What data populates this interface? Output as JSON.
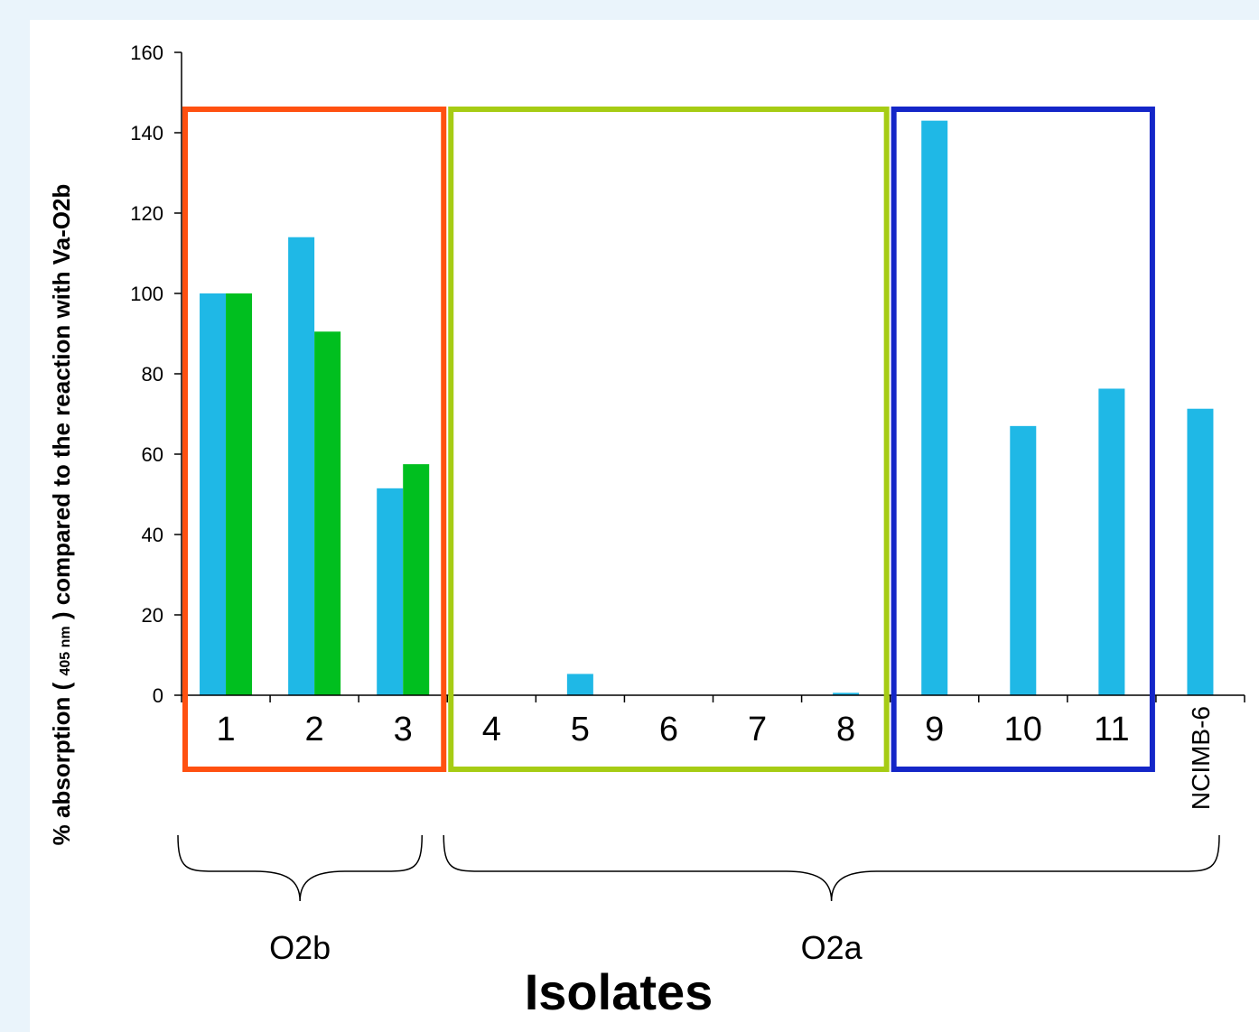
{
  "chart_data": {
    "type": "bar",
    "categories": [
      "1",
      "2",
      "3",
      "4",
      "5",
      "6",
      "7",
      "8",
      "9",
      "10",
      "11",
      "NCIMB-6"
    ],
    "series": [
      {
        "color": "#1fb8e6",
        "values": [
          100,
          114,
          51.5,
          0,
          5.3,
          0,
          0,
          0.6,
          143,
          67,
          76.3,
          71.3
        ]
      },
      {
        "color": "#00bf1f",
        "values": [
          100,
          90.5,
          57.5,
          null,
          null,
          null,
          null,
          null,
          null,
          null,
          null,
          null
        ]
      }
    ],
    "ylim": [
      0,
      160
    ],
    "yticks": [
      0,
      20,
      40,
      60,
      80,
      100,
      120,
      140,
      160
    ],
    "xlabel": "Isolates",
    "ylabel": {
      "before": "% absorption ( ",
      "sub": "405 nm",
      "after": " ) compared to the reaction with Va-O2b"
    },
    "highlight_boxes": [
      {
        "from": "1",
        "to": "3",
        "color": "#ff5010"
      },
      {
        "from": "4",
        "to": "8",
        "color": "#a6cc14"
      },
      {
        "from": "9",
        "to": "11",
        "color": "#1426c8"
      }
    ],
    "groups": [
      {
        "label": "O2b",
        "from": "1",
        "to": "3"
      },
      {
        "label": "O2a",
        "from": "4",
        "to": "NCIMB-6"
      }
    ],
    "background_color": "#eaf4fb",
    "grid": false
  }
}
